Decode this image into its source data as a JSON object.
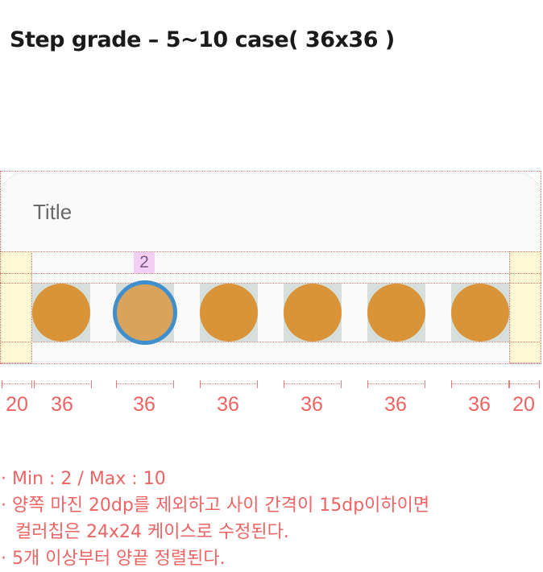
{
  "heading": "Step grade – 5~10 case( 36x36 )",
  "card": {
    "title": "Title"
  },
  "selected_index_badge": "2",
  "chips": {
    "count": 6,
    "selected_index": 1
  },
  "ruler": {
    "margin_left": "20",
    "chip_widths": [
      "36",
      "36",
      "36",
      "36",
      "36",
      "36"
    ],
    "margin_right": "20"
  },
  "notes": [
    "· Min : 2 / Max : 10",
    "· 양쪽 마진 20dp를 제외하고 사이 간격이 15dp이하이면",
    "컬러칩은 24x24 케이스로 수정된다.",
    "· 5개 이상부터 양끝 정렬된다."
  ],
  "colors": {
    "chip_fill": "#d89436",
    "chip_selected_fill": "#d9a35c",
    "selected_ring": "#3f8ecd",
    "spec_red": "#ee6363",
    "margin_highlight": "#fff8d2",
    "badge_bg": "#f3cff6"
  }
}
